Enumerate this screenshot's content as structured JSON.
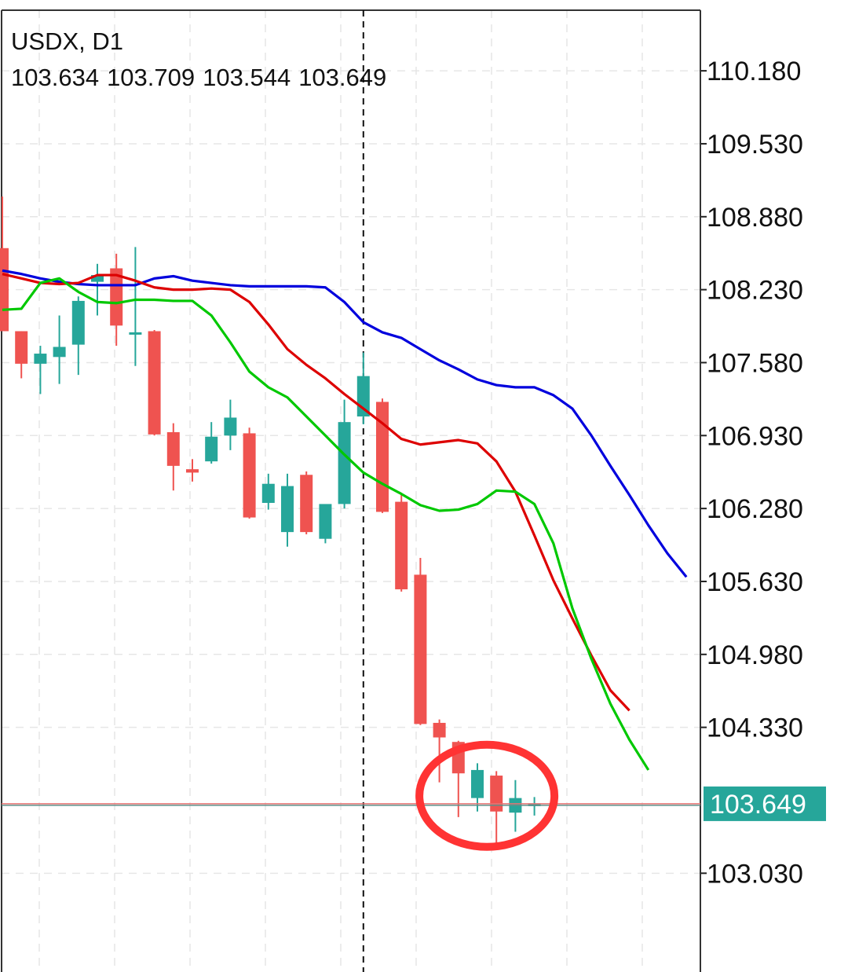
{
  "header": {
    "symbol": "USDX, D1",
    "open": "103.634",
    "high": "103.709",
    "low": "103.544",
    "close": "103.649"
  },
  "price_badge": "103.649",
  "chart_data": {
    "type": "candlestick",
    "y_ticks": [
      "110.180",
      "109.530",
      "108.880",
      "108.230",
      "107.580",
      "106.930",
      "106.280",
      "105.630",
      "104.980",
      "104.330",
      "103.030"
    ],
    "ylim": [
      102.15,
      110.72
    ],
    "grid": true,
    "current_price": 103.649,
    "crosshair_index": 19,
    "highlight": {
      "shape": "ellipse",
      "color": "#ff3333",
      "from_index": 24,
      "to_index": 27,
      "center_price": 103.72
    },
    "candles": [
      {
        "o": 108.6,
        "h": 109.06,
        "l": 107.86,
        "c": 107.86
      },
      {
        "o": 107.86,
        "h": 107.86,
        "l": 107.44,
        "c": 107.57
      },
      {
        "o": 107.57,
        "h": 107.73,
        "l": 107.3,
        "c": 107.66
      },
      {
        "o": 107.63,
        "h": 108.0,
        "l": 107.39,
        "c": 107.72
      },
      {
        "o": 107.74,
        "h": 108.17,
        "l": 107.47,
        "c": 108.13
      },
      {
        "o": 108.3,
        "h": 108.46,
        "l": 108.0,
        "c": 108.36
      },
      {
        "o": 108.42,
        "h": 108.55,
        "l": 107.73,
        "c": 107.91
      },
      {
        "o": 107.85,
        "h": 108.61,
        "l": 107.55,
        "c": 107.85
      },
      {
        "o": 107.86,
        "h": 107.87,
        "l": 106.93,
        "c": 106.94
      },
      {
        "o": 106.96,
        "h": 107.04,
        "l": 106.44,
        "c": 106.66
      },
      {
        "o": 106.63,
        "h": 106.72,
        "l": 106.52,
        "c": 106.6
      },
      {
        "o": 106.7,
        "h": 107.05,
        "l": 106.68,
        "c": 106.92
      },
      {
        "o": 106.93,
        "h": 107.25,
        "l": 106.8,
        "c": 107.09
      },
      {
        "o": 106.95,
        "h": 107.0,
        "l": 106.19,
        "c": 106.2
      },
      {
        "o": 106.33,
        "h": 106.59,
        "l": 106.27,
        "c": 106.5
      },
      {
        "o": 106.07,
        "h": 106.59,
        "l": 105.94,
        "c": 106.48
      },
      {
        "o": 106.58,
        "h": 106.61,
        "l": 106.05,
        "c": 106.07
      },
      {
        "o": 106.01,
        "h": 106.31,
        "l": 105.97,
        "c": 106.32
      },
      {
        "o": 106.32,
        "h": 107.25,
        "l": 106.28,
        "c": 107.05
      },
      {
        "o": 107.1,
        "h": 107.67,
        "l": 107.03,
        "c": 107.46
      },
      {
        "o": 107.23,
        "h": 107.26,
        "l": 106.24,
        "c": 106.25
      },
      {
        "o": 106.34,
        "h": 106.41,
        "l": 105.54,
        "c": 105.56
      },
      {
        "o": 105.69,
        "h": 105.84,
        "l": 104.35,
        "c": 104.36
      },
      {
        "o": 104.37,
        "h": 104.4,
        "l": 103.84,
        "c": 104.24
      },
      {
        "o": 104.2,
        "h": 104.21,
        "l": 103.53,
        "c": 103.92
      },
      {
        "o": 103.7,
        "h": 104.01,
        "l": 103.58,
        "c": 103.95
      },
      {
        "o": 103.9,
        "h": 103.94,
        "l": 103.26,
        "c": 103.58
      },
      {
        "o": 103.57,
        "h": 103.86,
        "l": 103.4,
        "c": 103.7
      },
      {
        "o": 103.634,
        "h": 103.709,
        "l": 103.544,
        "c": 103.649
      }
    ],
    "series": [
      {
        "color": "#0000dd",
        "values": [
          108.4,
          108.37,
          108.33,
          108.3,
          108.28,
          108.27,
          108.27,
          108.27,
          108.33,
          108.35,
          108.31,
          108.29,
          108.27,
          108.26,
          108.26,
          108.26,
          108.26,
          108.25,
          108.12,
          107.94,
          107.85,
          107.8,
          107.7,
          107.6,
          107.52,
          107.43,
          107.38,
          107.36,
          107.36,
          107.29,
          107.17,
          106.93,
          106.66,
          106.4,
          106.13,
          105.88,
          105.67
        ]
      },
      {
        "color": "#dd0000",
        "values": [
          108.37,
          108.33,
          108.29,
          108.28,
          108.29,
          108.36,
          108.36,
          108.31,
          108.25,
          108.23,
          108.23,
          108.24,
          108.23,
          108.12,
          107.92,
          107.7,
          107.56,
          107.44,
          107.3,
          107.17,
          107.04,
          106.9,
          106.85,
          106.87,
          106.89,
          106.86,
          106.7,
          106.43,
          106.04,
          105.64,
          105.3,
          104.97,
          104.66,
          104.48
        ]
      },
      {
        "color": "#00c800",
        "values": [
          108.05,
          108.06,
          108.29,
          108.33,
          108.21,
          108.12,
          108.11,
          108.14,
          108.14,
          108.13,
          108.13,
          108.0,
          107.76,
          107.5,
          107.36,
          107.27,
          107.1,
          106.93,
          106.76,
          106.6,
          106.5,
          106.41,
          106.31,
          106.26,
          106.27,
          106.32,
          106.44,
          106.43,
          106.32,
          105.97,
          105.39,
          104.94,
          104.54,
          104.22,
          103.95
        ]
      }
    ]
  }
}
